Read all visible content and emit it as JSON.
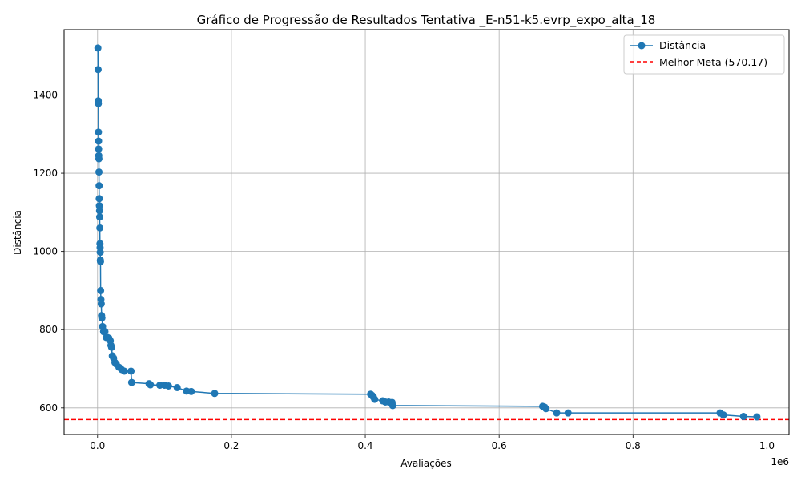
{
  "chart_data": {
    "type": "line",
    "title": "Gráfico de Progressão de Resultados Tentativa _E-n51-k5.evrp_expo_alta_18",
    "xlabel": "Avaliações",
    "ylabel": "Distância",
    "x_multiplier_label": "1e6",
    "xlim": [
      -0.05,
      1.033
    ],
    "ylim": [
      532,
      1567
    ],
    "x_ticks": [
      0.0,
      0.2,
      0.4,
      0.6,
      0.8,
      1.0
    ],
    "x_tick_labels": [
      "0.0",
      "0.2",
      "0.4",
      "0.6",
      "0.8",
      "1.0"
    ],
    "y_ticks": [
      600,
      800,
      1000,
      1200,
      1400
    ],
    "y_tick_labels": [
      "600",
      "800",
      "1000",
      "1200",
      "1400"
    ],
    "grid": true,
    "legend_position": "top-right",
    "series": [
      {
        "name": "Distância",
        "color": "#1f77b4",
        "marker": "circle",
        "x": [
          0.0005,
          0.0008,
          0.001,
          0.0012,
          0.0013,
          0.0015,
          0.0016,
          0.0018,
          0.002,
          0.0021,
          0.0023,
          0.0025,
          0.0027,
          0.003,
          0.0032,
          0.0034,
          0.0036,
          0.0038,
          0.004,
          0.0042,
          0.0044,
          0.0046,
          0.005,
          0.0055,
          0.006,
          0.0065,
          0.0075,
          0.009,
          0.011,
          0.013,
          0.015,
          0.017,
          0.019,
          0.02,
          0.021,
          0.022,
          0.024,
          0.026,
          0.028,
          0.032,
          0.036,
          0.04,
          0.05,
          0.051,
          0.077,
          0.079,
          0.093,
          0.1,
          0.106,
          0.119,
          0.133,
          0.14,
          0.175,
          0.408,
          0.41,
          0.412,
          0.414,
          0.426,
          0.43,
          0.435,
          0.44,
          0.441,
          0.665,
          0.668,
          0.67,
          0.686,
          0.703,
          0.93,
          0.935,
          0.965,
          0.985
        ],
        "y": [
          1520,
          1465,
          1385,
          1378,
          1305,
          1282,
          1262,
          1245,
          1237,
          1203,
          1168,
          1135,
          1117,
          1104,
          1088,
          1060,
          1020,
          1010,
          998,
          978,
          974,
          900,
          877,
          866,
          836,
          830,
          808,
          795,
          795,
          780,
          780,
          778,
          772,
          760,
          755,
          733,
          727,
          716,
          712,
          704,
          698,
          694,
          694,
          665,
          662,
          659,
          658,
          658,
          656,
          652,
          643,
          642,
          637,
          635,
          632,
          628,
          622,
          618,
          615,
          615,
          614,
          606,
          604,
          602,
          598,
          587,
          587,
          587,
          582,
          578,
          577
        ]
      }
    ],
    "reference_lines": [
      {
        "name": "Melhor Meta (570.17)",
        "y": 570.17,
        "color": "#ff0000",
        "style": "dashed"
      }
    ]
  }
}
